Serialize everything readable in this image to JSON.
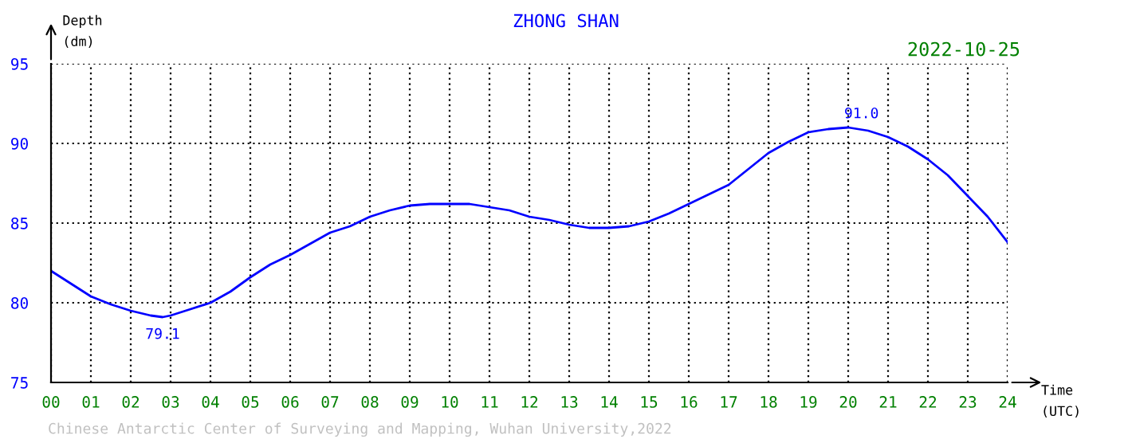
{
  "chart_data": {
    "type": "line",
    "title": "ZHONG SHAN",
    "subtitle": "2022-10-25",
    "xlabel": "Time\n(UTC)",
    "ylabel": "Depth\n(dm)",
    "x": [
      0,
      0.5,
      1,
      1.5,
      2,
      2.5,
      2.8,
      3,
      3.5,
      4,
      4.5,
      5,
      5.5,
      6,
      6.5,
      7,
      7.5,
      8,
      8.5,
      9,
      9.5,
      10,
      10.5,
      11,
      11.5,
      12,
      12.5,
      13,
      13.5,
      14,
      14.5,
      15,
      15.5,
      16,
      16.5,
      17,
      17.5,
      18,
      18.5,
      19,
      19.5,
      20,
      20.5,
      21,
      21.5,
      22,
      22.5,
      23,
      23.5,
      24
    ],
    "series": [
      {
        "color": "#0000ff",
        "values": [
          82.0,
          81.2,
          80.4,
          79.9,
          79.5,
          79.2,
          79.1,
          79.2,
          79.6,
          80.0,
          80.7,
          81.6,
          82.4,
          83.0,
          83.7,
          84.4,
          84.8,
          85.4,
          85.8,
          86.1,
          86.2,
          86.2,
          86.2,
          86.0,
          85.8,
          85.4,
          85.2,
          84.9,
          84.7,
          84.7,
          84.8,
          85.1,
          85.6,
          86.2,
          86.8,
          87.4,
          88.4,
          89.4,
          90.1,
          90.7,
          90.9,
          91.0,
          90.8,
          90.4,
          89.8,
          89.0,
          88.0,
          86.7,
          85.4,
          83.8
        ]
      }
    ],
    "xlim": [
      0,
      24
    ],
    "ylim": [
      75,
      95
    ],
    "xticks": [
      {
        "value": 0,
        "label": "00"
      },
      {
        "value": 1,
        "label": "01"
      },
      {
        "value": 2,
        "label": "02"
      },
      {
        "value": 3,
        "label": "03"
      },
      {
        "value": 4,
        "label": "04"
      },
      {
        "value": 5,
        "label": "05"
      },
      {
        "value": 6,
        "label": "06"
      },
      {
        "value": 7,
        "label": "07"
      },
      {
        "value": 8,
        "label": "08"
      },
      {
        "value": 9,
        "label": "09"
      },
      10,
      11,
      12,
      13,
      14,
      15,
      16,
      17,
      18,
      19,
      20,
      21,
      22,
      23,
      24
    ],
    "yticks": [
      75,
      80,
      85,
      90,
      95
    ],
    "grid": true,
    "marker": "none",
    "line_style": "solid",
    "legend": false,
    "annotations": [
      {
        "text": "79.1",
        "x": 2.8,
        "y": 79.1
      },
      {
        "text": "91.0",
        "x": 20,
        "y": 91.0
      },
      "Chinese Antarctic Center of Surveying and Mapping, Wuhan University,2022"
    ]
  }
}
